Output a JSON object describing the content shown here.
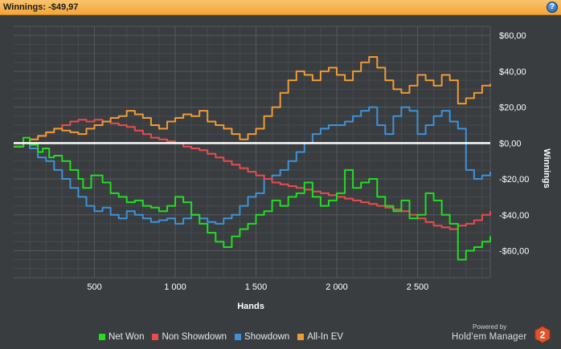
{
  "header": {
    "title": "Winnings: -$49,97",
    "help_icon": "?"
  },
  "chart_data": {
    "type": "line",
    "xlabel": "Hands",
    "ylabel": "Winnings",
    "xlim": [
      0,
      2950
    ],
    "ylim": [
      -75,
      65
    ],
    "x_ticks": [
      {
        "value": 500,
        "label": "500"
      },
      {
        "value": 1000,
        "label": "1 000"
      },
      {
        "value": 1500,
        "label": "1 500"
      },
      {
        "value": 2000,
        "label": "2 000"
      },
      {
        "value": 2500,
        "label": "2 500"
      }
    ],
    "y_ticks": [
      {
        "value": 60,
        "label": "$60,00"
      },
      {
        "value": 40,
        "label": "$40,00"
      },
      {
        "value": 20,
        "label": "$20,00"
      },
      {
        "value": 0,
        "label": "$0,00"
      },
      {
        "value": -20,
        "label": "-$20,00"
      },
      {
        "value": -40,
        "label": "-$40,00"
      },
      {
        "value": -60,
        "label": "-$60,00"
      }
    ],
    "grid": true,
    "zero_line_color": "#ffffff",
    "series": [
      {
        "name": "Net Won",
        "color": "#22dd22",
        "x": [
          0,
          60,
          100,
          150,
          180,
          220,
          250,
          300,
          350,
          400,
          430,
          480,
          550,
          600,
          650,
          700,
          750,
          800,
          850,
          900,
          950,
          1000,
          1050,
          1100,
          1150,
          1200,
          1250,
          1300,
          1350,
          1400,
          1450,
          1500,
          1550,
          1600,
          1650,
          1700,
          1750,
          1800,
          1850,
          1900,
          1950,
          2000,
          2050,
          2100,
          2150,
          2200,
          2250,
          2300,
          2350,
          2400,
          2450,
          2500,
          2550,
          2600,
          2650,
          2700,
          2750,
          2800,
          2850,
          2900,
          2950
        ],
        "y": [
          -2,
          3,
          -1,
          -5,
          -3,
          -8,
          -7,
          -10,
          -15,
          -20,
          -25,
          -18,
          -22,
          -28,
          -30,
          -33,
          -32,
          -35,
          -36,
          -38,
          -35,
          -30,
          -33,
          -40,
          -45,
          -50,
          -55,
          -58,
          -52,
          -48,
          -45,
          -40,
          -38,
          -32,
          -35,
          -30,
          -28,
          -22,
          -30,
          -35,
          -32,
          -28,
          -15,
          -25,
          -22,
          -20,
          -30,
          -35,
          -38,
          -32,
          -42,
          -40,
          -28,
          -32,
          -40,
          -45,
          -65,
          -60,
          -58,
          -55,
          -52
        ]
      },
      {
        "name": "Non Showdown",
        "color": "#e84c4c",
        "x": [
          0,
          60,
          100,
          150,
          200,
          250,
          300,
          350,
          400,
          450,
          500,
          550,
          600,
          650,
          700,
          750,
          800,
          850,
          900,
          950,
          1000,
          1050,
          1100,
          1150,
          1200,
          1250,
          1300,
          1350,
          1400,
          1450,
          1500,
          1550,
          1600,
          1650,
          1700,
          1750,
          1800,
          1850,
          1900,
          1950,
          2000,
          2050,
          2100,
          2150,
          2200,
          2250,
          2300,
          2350,
          2400,
          2450,
          2500,
          2550,
          2600,
          2650,
          2700,
          2750,
          2800,
          2850,
          2900,
          2950
        ],
        "y": [
          -2,
          0,
          2,
          4,
          6,
          8,
          10,
          12,
          13,
          12,
          13,
          12,
          11,
          10,
          9,
          7,
          5,
          3,
          2,
          1,
          0,
          -2,
          -3,
          -4,
          -6,
          -8,
          -10,
          -12,
          -14,
          -16,
          -18,
          -20,
          -22,
          -23,
          -24,
          -25,
          -26,
          -27,
          -28,
          -29,
          -30,
          -31,
          -32,
          -33,
          -34,
          -35,
          -36,
          -37,
          -38,
          -40,
          -42,
          -44,
          -46,
          -47,
          -48,
          -46,
          -45,
          -43,
          -40,
          -38
        ]
      },
      {
        "name": "Showdown",
        "color": "#3d92d9",
        "x": [
          0,
          60,
          100,
          150,
          200,
          250,
          300,
          350,
          400,
          450,
          500,
          550,
          600,
          650,
          700,
          750,
          800,
          850,
          900,
          950,
          1000,
          1050,
          1100,
          1150,
          1200,
          1250,
          1300,
          1350,
          1400,
          1450,
          1500,
          1550,
          1600,
          1650,
          1700,
          1750,
          1800,
          1850,
          1900,
          1950,
          2000,
          2050,
          2100,
          2150,
          2200,
          2250,
          2300,
          2350,
          2400,
          2450,
          2500,
          2550,
          2600,
          2650,
          2700,
          2750,
          2800,
          2850,
          2900,
          2950
        ],
        "y": [
          -2,
          0,
          -3,
          -8,
          -10,
          -15,
          -20,
          -25,
          -30,
          -35,
          -38,
          -36,
          -40,
          -42,
          -38,
          -40,
          -42,
          -44,
          -43,
          -42,
          -45,
          -42,
          -40,
          -42,
          -44,
          -45,
          -42,
          -40,
          -35,
          -30,
          -28,
          -20,
          -18,
          -15,
          -10,
          -5,
          0,
          5,
          8,
          10,
          10,
          12,
          15,
          18,
          20,
          10,
          5,
          15,
          20,
          18,
          5,
          10,
          15,
          18,
          12,
          8,
          -15,
          -20,
          -18,
          -16
        ]
      },
      {
        "name": "All-In EV",
        "color": "#f09a34",
        "x": [
          0,
          60,
          100,
          150,
          200,
          250,
          300,
          350,
          400,
          450,
          500,
          550,
          600,
          650,
          700,
          750,
          800,
          850,
          900,
          950,
          1000,
          1050,
          1100,
          1150,
          1200,
          1250,
          1300,
          1350,
          1400,
          1450,
          1500,
          1550,
          1600,
          1650,
          1700,
          1750,
          1800,
          1850,
          1900,
          1950,
          2000,
          2050,
          2100,
          2150,
          2200,
          2250,
          2300,
          2350,
          2400,
          2450,
          2500,
          2550,
          2600,
          2650,
          2700,
          2750,
          2800,
          2850,
          2900,
          2950
        ],
        "y": [
          -2,
          0,
          2,
          4,
          6,
          8,
          7,
          6,
          5,
          8,
          10,
          12,
          14,
          15,
          18,
          16,
          14,
          10,
          8,
          12,
          14,
          16,
          15,
          18,
          12,
          10,
          8,
          5,
          2,
          5,
          8,
          15,
          20,
          28,
          35,
          40,
          38,
          35,
          40,
          42,
          38,
          35,
          40,
          45,
          48,
          42,
          35,
          30,
          28,
          32,
          38,
          35,
          32,
          38,
          35,
          22,
          25,
          28,
          32,
          33
        ]
      }
    ]
  },
  "footer": {
    "powered_by": "Powered by",
    "brand_name": "Hold'em Manager",
    "brand_badge": "2"
  }
}
